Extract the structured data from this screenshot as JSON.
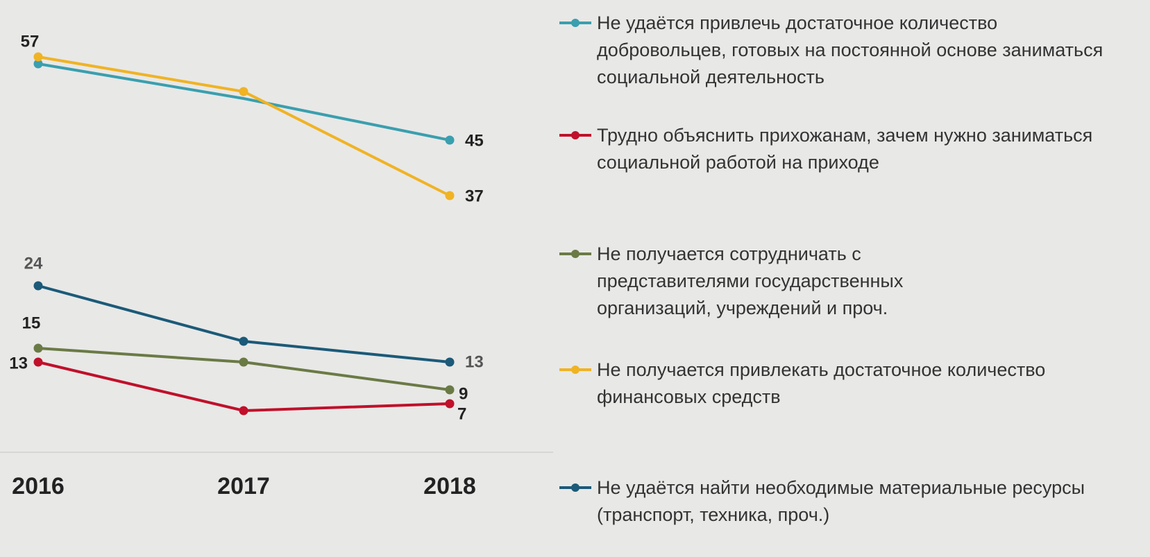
{
  "chart_data": {
    "type": "line",
    "categories": [
      "2016",
      "2017",
      "2018"
    ],
    "ylim": [
      0,
      65
    ],
    "legend": "right",
    "series": [
      {
        "name": "Не удаётся привлечь достаточное количество добровольцев, готовых на постоянной основе заниматься социальной деятельность",
        "color": "#3a9fae",
        "values": [
          56,
          51,
          45
        ],
        "value_labels": [
          null,
          null,
          "45"
        ]
      },
      {
        "name": "Трудно объяснить прихожанам, зачем нужно заниматься социальной работой на приходе",
        "color": "#c0102a",
        "values": [
          13,
          6,
          7
        ],
        "value_labels": [
          "13",
          null,
          "7"
        ]
      },
      {
        "name": "Не получается сотрудничать с представителями государственных организаций, учреждений и проч.",
        "color": "#6a7a45",
        "values": [
          15,
          13,
          9
        ],
        "value_labels": [
          "15",
          null,
          "9"
        ]
      },
      {
        "name": "Не получается привлекать достаточное количество финансовых средств",
        "color": "#f0b323",
        "values": [
          57,
          52,
          37
        ],
        "value_labels": [
          "57",
          null,
          "37"
        ]
      },
      {
        "name": "Не удаётся найти необходимые материальные ресурсы (транспорт, техника, проч.)",
        "color": "#1b5a78",
        "values": [
          24,
          16,
          13
        ],
        "value_labels": [
          "24",
          null,
          "13"
        ]
      }
    ]
  }
}
